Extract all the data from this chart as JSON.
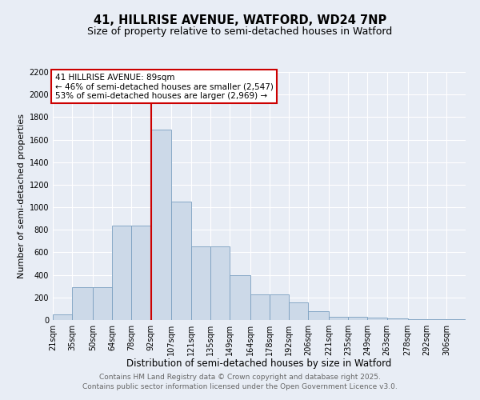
{
  "title_line1": "41, HILLRISE AVENUE, WATFORD, WD24 7NP",
  "title_line2": "Size of property relative to semi-detached houses in Watford",
  "xlabel": "Distribution of semi-detached houses by size in Watford",
  "ylabel": "Number of semi-detached properties",
  "bins": [
    21,
    35,
    50,
    64,
    78,
    92,
    107,
    121,
    135,
    149,
    164,
    178,
    192,
    206,
    221,
    235,
    249,
    263,
    278,
    292,
    306
  ],
  "counts": [
    50,
    290,
    290,
    840,
    840,
    1690,
    1050,
    650,
    650,
    395,
    230,
    230,
    155,
    75,
    30,
    30,
    20,
    15,
    5,
    5,
    10
  ],
  "bar_color": "#ccd9e8",
  "bar_edge_color": "#7a9fc0",
  "vline_x": 92,
  "vline_color": "#cc0000",
  "annotation_title": "41 HILLRISE AVENUE: 89sqm",
  "annotation_line1": "← 46% of semi-detached houses are smaller (2,547)",
  "annotation_line2": "53% of semi-detached houses are larger (2,969) →",
  "annotation_box_color": "#cc0000",
  "ylim": [
    0,
    2200
  ],
  "yticks": [
    0,
    200,
    400,
    600,
    800,
    1000,
    1200,
    1400,
    1600,
    1800,
    2000,
    2200
  ],
  "footer_line1": "Contains HM Land Registry data © Crown copyright and database right 2025.",
  "footer_line2": "Contains public sector information licensed under the Open Government Licence v3.0.",
  "background_color": "#e8edf5",
  "grid_color": "#ffffff",
  "title_fontsize": 10.5,
  "subtitle_fontsize": 9,
  "xlabel_fontsize": 8.5,
  "ylabel_fontsize": 8,
  "tick_fontsize": 7,
  "annotation_fontsize": 7.5,
  "footer_fontsize": 6.5
}
